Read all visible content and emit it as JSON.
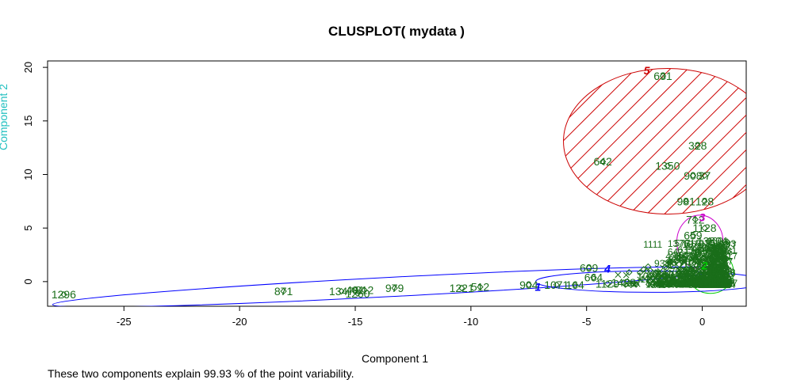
{
  "chart_data": {
    "type": "scatter",
    "title": "CLUSPLOT( mydata )",
    "xlabel": "Component 1",
    "ylabel": "Component 2",
    "subtitle": "These two components explain 99.93 % of the point variability.",
    "xlim": [
      -28.3,
      1.9
    ],
    "ylim": [
      -2.3,
      20.6
    ],
    "xticks": [
      -25,
      -20,
      -15,
      -10,
      -5,
      0
    ],
    "yticks": [
      0,
      5,
      10,
      15,
      20
    ],
    "point_color": "#1a6e1a",
    "clusters": [
      {
        "id": "1",
        "label_pos": [
          -7.1,
          -0.5
        ],
        "color": "#0000ff",
        "ellipse": {
          "cx": -13.5,
          "cy": -0.5,
          "rx": 14.6,
          "ry": 0.9,
          "angle": 3
        },
        "shaded": false
      },
      {
        "id": "2",
        "label_pos": [
          0.1,
          1.5
        ],
        "color": "#00cc00",
        "ellipse": {
          "cx": 0.35,
          "cy": 0.9,
          "rx": 1.0,
          "ry": 2.0,
          "angle": 0
        },
        "shaded": false
      },
      {
        "id": "3",
        "label_pos": [
          0.0,
          6.0
        ],
        "color": "#cc00cc",
        "ellipse": {
          "cx": -0.1,
          "cy": 3.7,
          "rx": 1.0,
          "ry": 2.5,
          "angle": 0
        },
        "shaded": false
      },
      {
        "id": "4",
        "label_pos": [
          -4.1,
          1.2
        ],
        "color": "#0000ff",
        "ellipse": {
          "cx": -2.2,
          "cy": 0.0,
          "rx": 5.0,
          "ry": 1.0,
          "angle": 0
        },
        "shaded": false
      },
      {
        "id": "5",
        "label_pos": [
          -2.4,
          19.7
        ],
        "color": "#cc0000",
        "ellipse": {
          "cx": -1.5,
          "cy": 13.1,
          "rx": 4.5,
          "ry": 6.8,
          "angle": 0
        },
        "shaded": true
      }
    ],
    "labeled_points": [
      {
        "label": "1296",
        "x": -27.6,
        "y": -1.2
      },
      {
        "label": "871",
        "x": -18.1,
        "y": -0.9
      },
      {
        "label": "1347",
        "x": -15.6,
        "y": -0.9
      },
      {
        "label": "481",
        "x": -15.0,
        "y": -0.8
      },
      {
        "label": "1260",
        "x": -14.9,
        "y": -1.1
      },
      {
        "label": "812",
        "x": -14.6,
        "y": -0.8
      },
      {
        "label": "979",
        "x": -13.3,
        "y": -0.6
      },
      {
        "label": "1221",
        "x": -10.4,
        "y": -0.6
      },
      {
        "label": "512",
        "x": -9.6,
        "y": -0.5
      },
      {
        "label": "904",
        "x": -7.5,
        "y": -0.3
      },
      {
        "label": "1071",
        "x": -6.3,
        "y": -0.3
      },
      {
        "label": "164",
        "x": -5.5,
        "y": -0.3
      },
      {
        "label": "609",
        "x": -4.9,
        "y": 1.3
      },
      {
        "label": "664",
        "x": -4.7,
        "y": 0.4
      },
      {
        "label": "1129",
        "x": -4.1,
        "y": -0.2
      },
      {
        "label": "1428",
        "x": -3.4,
        "y": -0.1
      },
      {
        "label": "631",
        "x": -1.7,
        "y": 19.2
      },
      {
        "label": "642",
        "x": -4.3,
        "y": 11.2
      },
      {
        "label": "328",
        "x": -0.2,
        "y": 12.7
      },
      {
        "label": "1350",
        "x": -1.5,
        "y": 10.8
      },
      {
        "label": "908",
        "x": -0.4,
        "y": 9.9
      },
      {
        "label": "37",
        "x": 0.1,
        "y": 9.9
      },
      {
        "label": "981",
        "x": -0.7,
        "y": 7.5
      },
      {
        "label": "128",
        "x": 0.1,
        "y": 7.5
      },
      {
        "label": "712",
        "x": -0.3,
        "y": 5.8
      },
      {
        "label": "1128",
        "x": 0.1,
        "y": 5.0
      },
      {
        "label": "659",
        "x": -0.4,
        "y": 4.3
      },
      {
        "label": "1380",
        "x": 0.3,
        "y": 3.8
      },
      {
        "label": "1120",
        "x": -1.0,
        "y": 1.6
      },
      {
        "label": "582",
        "x": -1.6,
        "y": 0.6
      },
      {
        "label": "1088",
        "x": -2.3,
        "y": 0.5
      },
      {
        "label": "212",
        "x": 0.5,
        "y": 3.0
      }
    ],
    "dense_region": {
      "x_range": [
        -3.8,
        1.1
      ],
      "y_range": [
        -0.3,
        3.8
      ]
    }
  }
}
